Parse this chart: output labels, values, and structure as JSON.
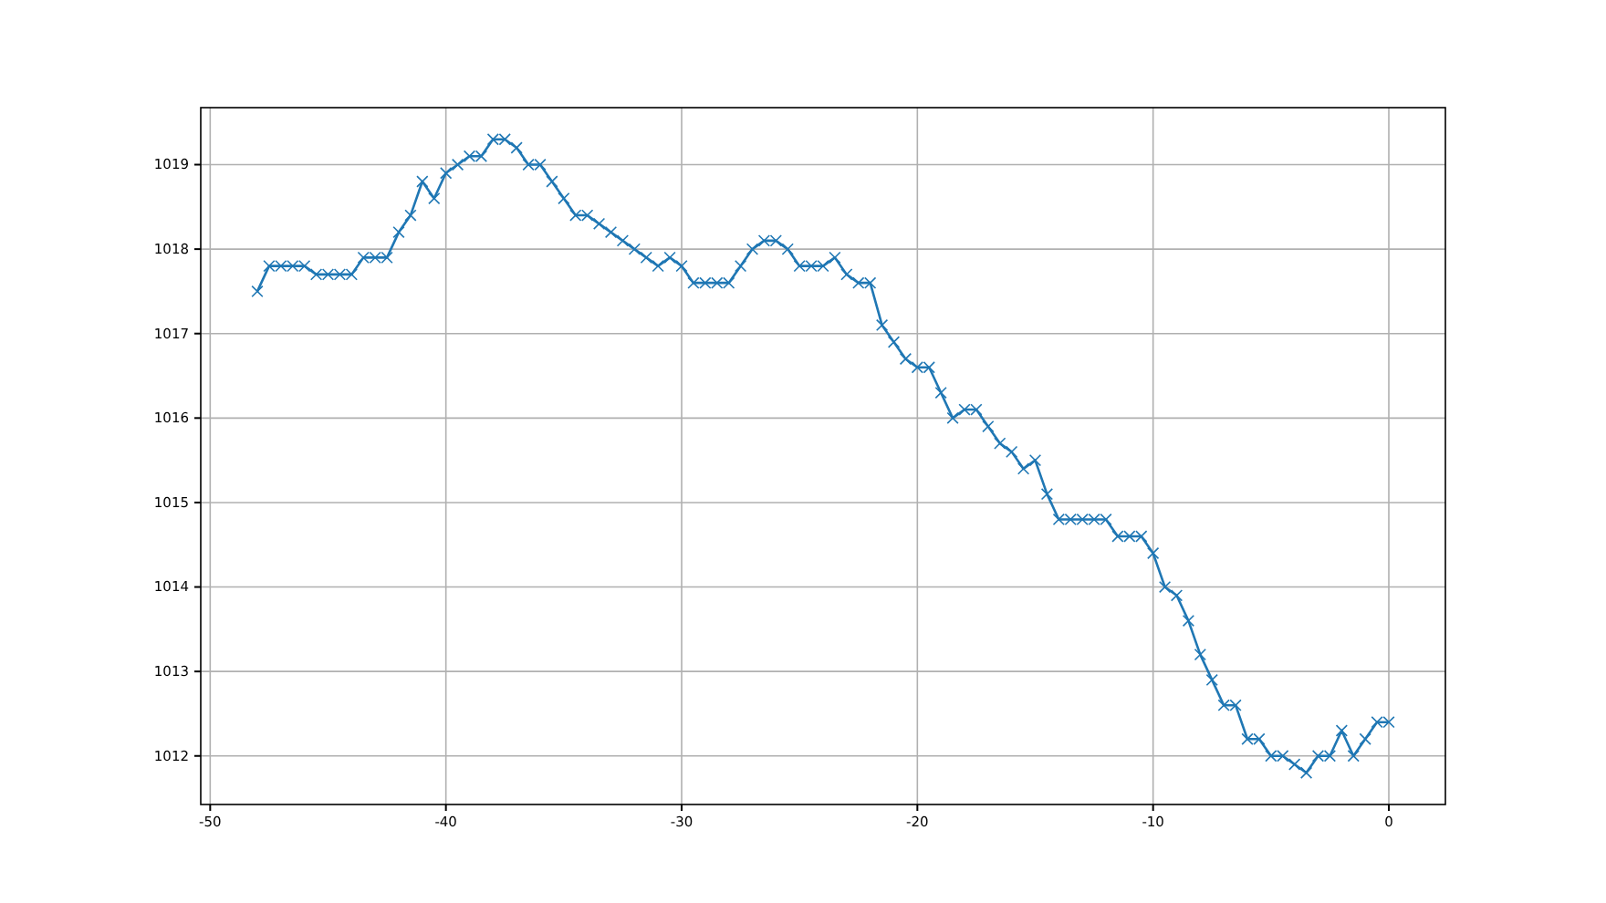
{
  "chart_data": {
    "type": "line",
    "marker": "cross",
    "line_style": "solid",
    "grid": true,
    "xlim": [
      -50.4,
      2.4
    ],
    "xticks": [
      -50,
      -40,
      -30,
      -20,
      -10,
      0
    ],
    "ylim": [
      1011.425,
      1019.675
    ],
    "yticks": [
      1012,
      1013,
      1014,
      1015,
      1016,
      1017,
      1018,
      1019
    ],
    "x": [
      -48,
      -47.5,
      -47,
      -46.5,
      -46,
      -45.5,
      -45,
      -44.5,
      -44,
      -43.5,
      -43,
      -42.5,
      -42,
      -41.5,
      -41,
      -40.5,
      -40,
      -39.5,
      -39,
      -38.5,
      -38,
      -37.5,
      -37,
      -36.5,
      -36,
      -35.5,
      -35,
      -34.5,
      -34,
      -33.5,
      -33,
      -32.5,
      -32,
      -31.5,
      -31,
      -30.5,
      -30,
      -29.5,
      -29,
      -28.5,
      -28,
      -27.5,
      -27,
      -26.5,
      -26,
      -25.5,
      -25,
      -24.5,
      -24,
      -23.5,
      -23,
      -22.5,
      -22,
      -21.5,
      -21,
      -20.5,
      -20,
      -19.5,
      -19,
      -18.5,
      -18,
      -17.5,
      -17,
      -16.5,
      -16,
      -15.5,
      -15,
      -14.5,
      -14,
      -13.5,
      -13,
      -12.5,
      -12,
      -11.5,
      -11,
      -10.5,
      -10,
      -9.5,
      -9,
      -8.5,
      -8,
      -7.5,
      -7,
      -6.5,
      -6,
      -5.5,
      -5,
      -4.5,
      -4,
      -3.5,
      -3,
      -2.5,
      -2,
      -1.5,
      -1,
      -0.5,
      0
    ],
    "series": [
      {
        "color": "#1f77b4",
        "values": [
          1017.5,
          1017.8,
          1017.8,
          1017.8,
          1017.8,
          1017.7,
          1017.7,
          1017.7,
          1017.7,
          1017.9,
          1017.9,
          1017.9,
          1018.2,
          1018.4,
          1018.8,
          1018.6,
          1018.9,
          1019.0,
          1019.1,
          1019.1,
          1019.3,
          1019.3,
          1019.2,
          1019.0,
          1019.0,
          1018.8,
          1018.6,
          1018.4,
          1018.4,
          1018.3,
          1018.2,
          1018.1,
          1018.0,
          1017.9,
          1017.8,
          1017.9,
          1017.8,
          1017.6,
          1017.6,
          1017.6,
          1017.6,
          1017.8,
          1018.0,
          1018.1,
          1018.1,
          1018.0,
          1017.8,
          1017.8,
          1017.8,
          1017.9,
          1017.7,
          1017.6,
          1017.6,
          1017.1,
          1016.9,
          1016.7,
          1016.6,
          1016.6,
          1016.3,
          1016.0,
          1016.1,
          1016.1,
          1015.9,
          1015.7,
          1015.6,
          1015.4,
          1015.5,
          1015.1,
          1014.8,
          1014.8,
          1014.8,
          1014.8,
          1014.8,
          1014.6,
          1014.6,
          1014.6,
          1014.4,
          1014.0,
          1013.9,
          1013.6,
          1013.2,
          1012.9,
          1012.6,
          1012.6,
          1012.2,
          1012.2,
          1012.0,
          1012.0,
          1011.9,
          1011.8,
          1012.0,
          1012.0,
          1012.3,
          1012.0,
          1012.2,
          1012.4,
          1012.4
        ]
      }
    ]
  }
}
